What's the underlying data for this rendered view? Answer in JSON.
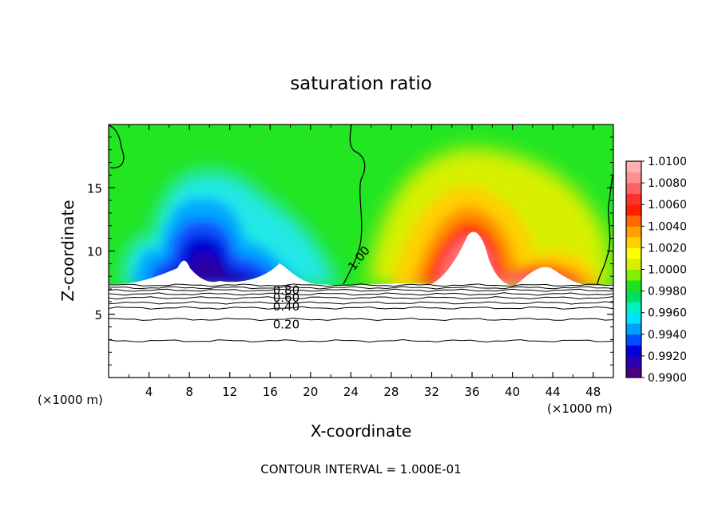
{
  "chart_data": {
    "type": "heatmap",
    "title": "saturation ratio",
    "xlabel": "X-coordinate",
    "ylabel": "Z-coordinate",
    "x_unit_left": "(×1000 m)",
    "x_unit_right": "(×1000 m)",
    "xlim": [
      0,
      50
    ],
    "ylim": [
      0,
      20
    ],
    "x_ticks": [
      4,
      8,
      12,
      16,
      20,
      24,
      28,
      32,
      36,
      40,
      44,
      48
    ],
    "x_tick_labels": [
      "4",
      "8",
      "12",
      "16",
      "20",
      "24",
      "28",
      "32",
      "36",
      "40",
      "44",
      "48"
    ],
    "y_ticks": [
      5,
      10,
      15
    ],
    "y_tick_labels": [
      "5",
      "10",
      "15"
    ],
    "footer": "CONTOUR INTERVAL = 1.000E-01",
    "colorbar": {
      "min": 0.99,
      "max": 1.01,
      "labels": [
        "1.0100",
        "1.0080",
        "1.0060",
        "1.0040",
        "1.0020",
        "1.0000",
        "0.9980",
        "0.9960",
        "0.9940",
        "0.9920",
        "0.9900"
      ],
      "values": [
        1.01,
        1.008,
        1.006,
        1.004,
        1.002,
        1.0,
        0.998,
        0.996,
        0.994,
        0.992,
        0.99
      ],
      "colors": [
        "#4b0082",
        "#2a00b0",
        "#0000e0",
        "#0050ff",
        "#00a0ff",
        "#00e0ff",
        "#00f0c0",
        "#00e060",
        "#20e020",
        "#80ef00",
        "#d8f000",
        "#ffff00",
        "#ffd000",
        "#ffa000",
        "#ff6800",
        "#ff2000",
        "#ff3030",
        "#ff6060",
        "#ff9090",
        "#ffb0b0"
      ]
    },
    "contour_labels": [
      {
        "text": "1.00",
        "x": 24.3,
        "y": 8.4
      },
      {
        "text": "0.80",
        "x": 17.6,
        "y": 6.9
      },
      {
        "text": "0.60",
        "x": 17.6,
        "y": 6.3
      },
      {
        "text": "0.40",
        "x": 17.6,
        "y": 5.6
      },
      {
        "text": "0.20",
        "x": 17.6,
        "y": 4.2
      }
    ],
    "lower_contour_levels": [
      7.3,
      7.1,
      6.9,
      6.6,
      6.3,
      5.9,
      5.5,
      4.6,
      2.9
    ]
  }
}
